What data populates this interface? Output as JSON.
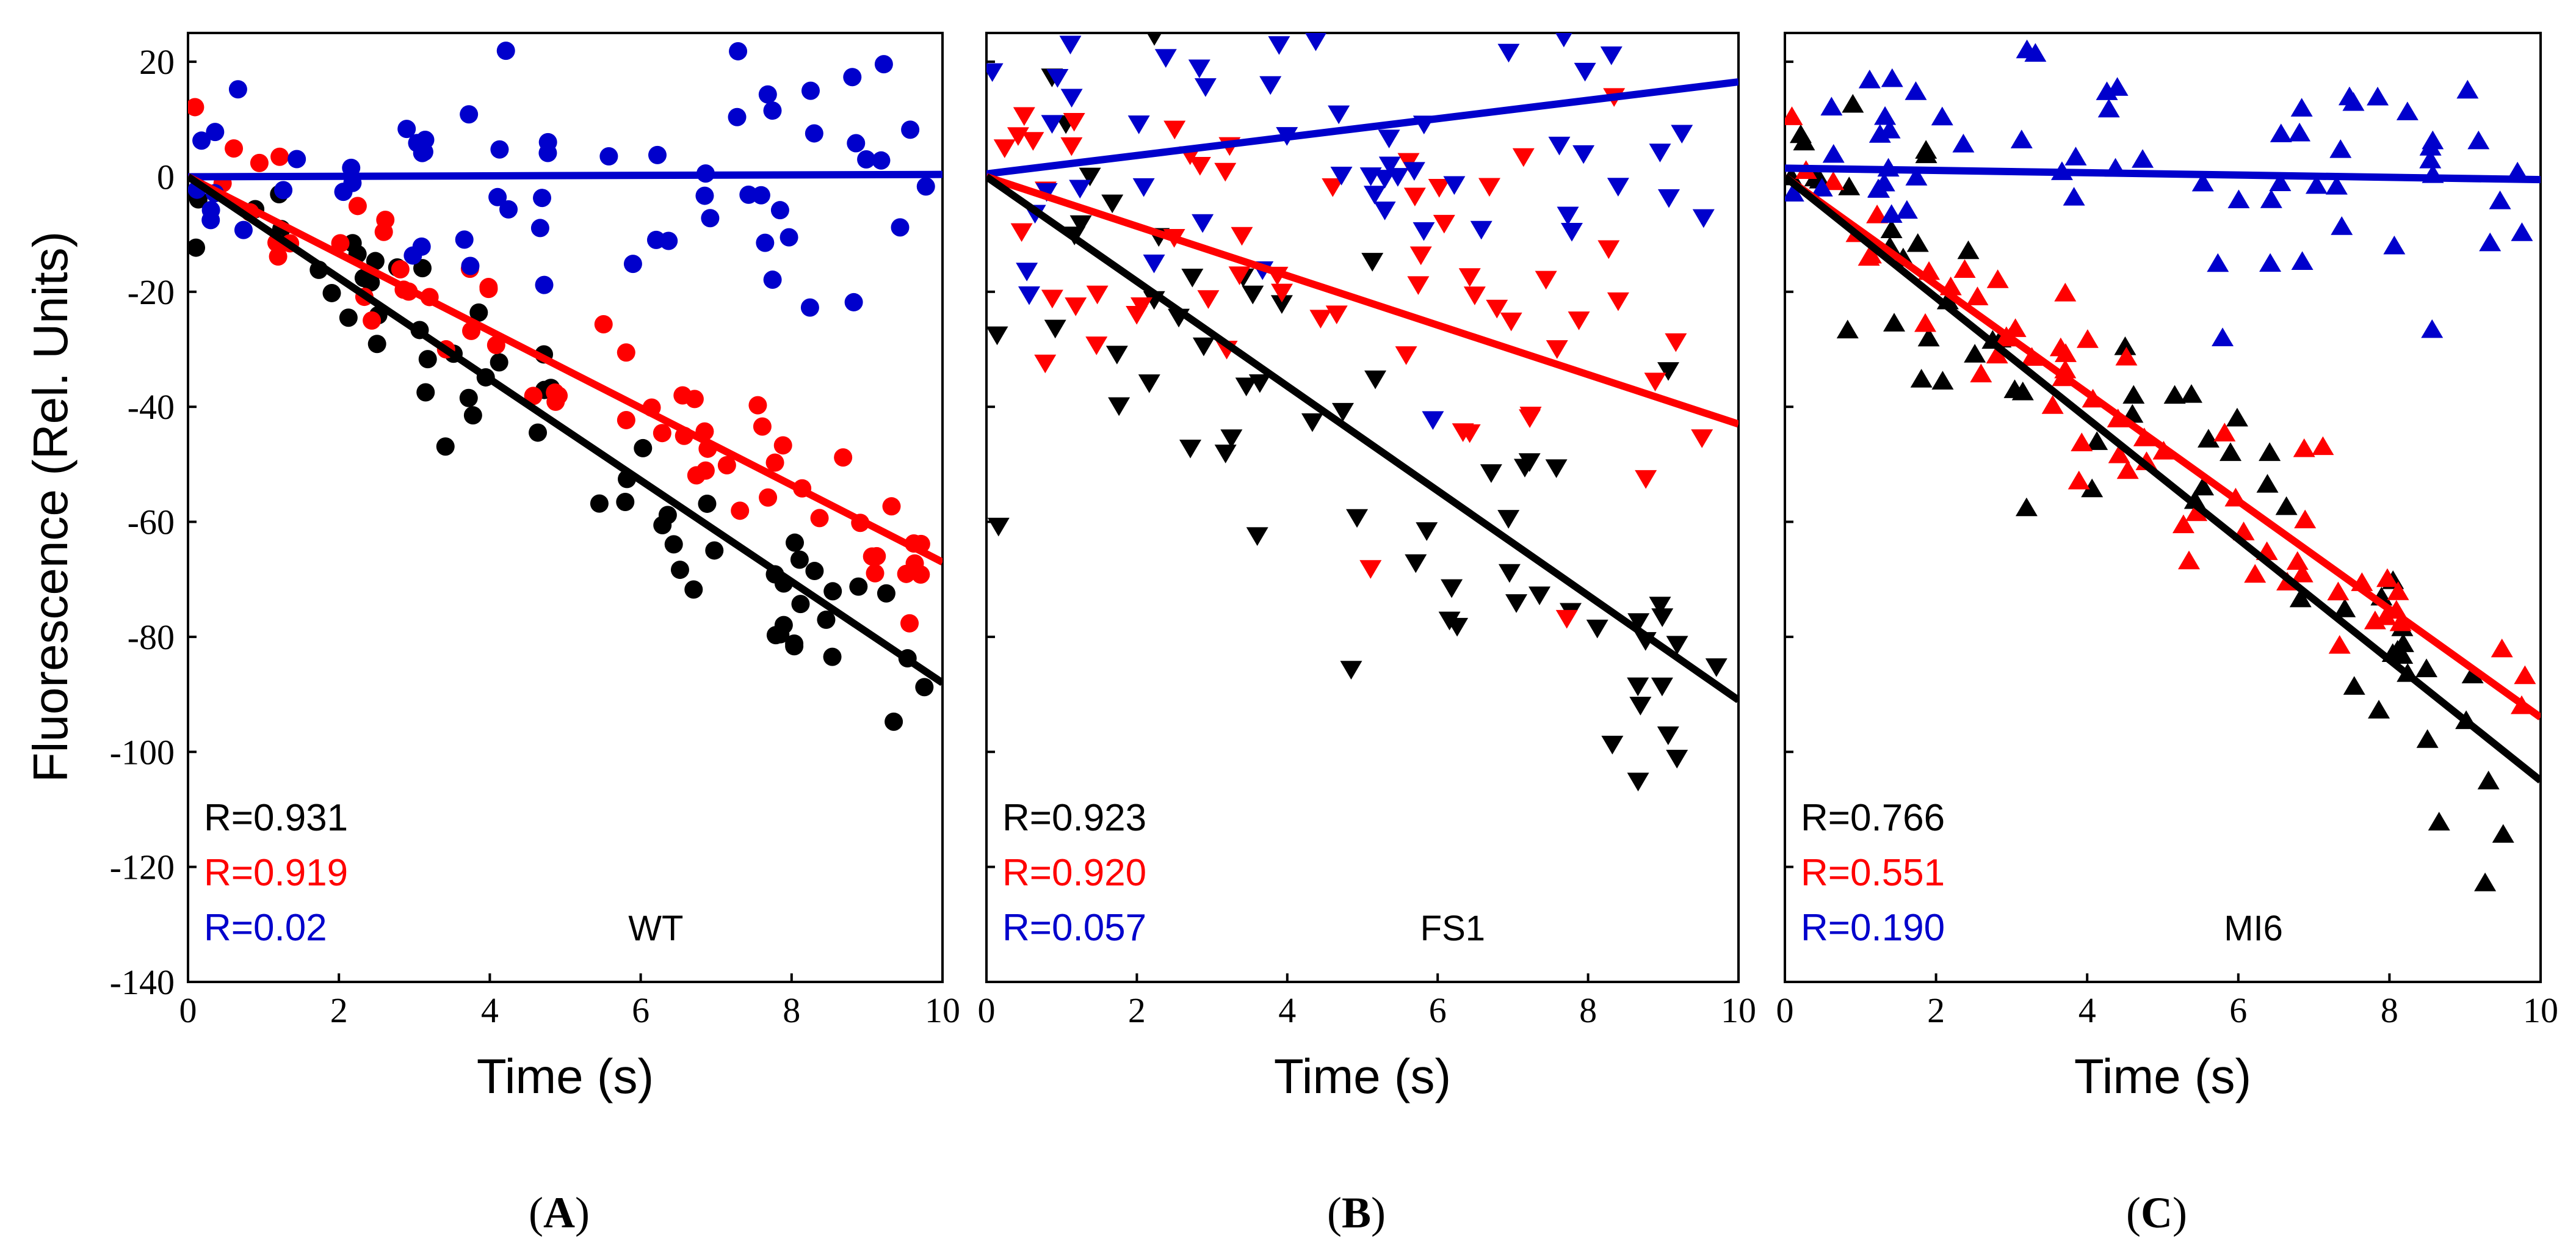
{
  "chart_data": {
    "type": "scatter",
    "ylabel": "Fluorescence (Rel. Units)",
    "ylim": [
      -140,
      25
    ],
    "yticks": [
      -140,
      -120,
      -100,
      -80,
      -60,
      -40,
      -20,
      0,
      20
    ],
    "xlim": [
      0,
      10
    ],
    "xticks": [
      0,
      2,
      4,
      6,
      8,
      10
    ],
    "colors": {
      "black": "#000000",
      "red": "#ff0000",
      "blue": "#0000cc"
    },
    "panels": [
      {
        "id": "A",
        "letter_open": "(",
        "letter": "A",
        "letter_close": ")",
        "name": "WT",
        "xlabel": "Time (s)",
        "marker": "circle",
        "series": [
          {
            "name": "black",
            "color": "#000000",
            "r_label": "R=0.931",
            "slope": -8.8,
            "intercept": 0
          },
          {
            "name": "red",
            "color": "#ff0000",
            "r_label": "R=0.919",
            "slope": -6.7,
            "intercept": 0
          },
          {
            "name": "blue",
            "color": "#0000cc",
            "r_label": "R=0.02",
            "slope": 0.04,
            "intercept": 0
          }
        ]
      },
      {
        "id": "B",
        "letter_open": "(",
        "letter": "B",
        "letter_close": ")",
        "name": "FS1",
        "xlabel": "Time (s)",
        "marker": "triangle-down",
        "series": [
          {
            "name": "black",
            "color": "#000000",
            "r_label": "R=0.923",
            "slope": -9.1,
            "intercept": 0
          },
          {
            "name": "red",
            "color": "#ff0000",
            "r_label": "R=0.920",
            "slope": -4.3,
            "intercept": 0
          },
          {
            "name": "blue",
            "color": "#0000cc",
            "r_label": "R=0.057",
            "slope": 1.6,
            "intercept": 0.5
          }
        ]
      },
      {
        "id": "C",
        "letter_open": "(",
        "letter": "C",
        "letter_close": ")",
        "name": "MI6",
        "xlabel": "Time (s)",
        "marker": "triangle-up",
        "series": [
          {
            "name": "black",
            "color": "#000000",
            "r_label": "R=0.766",
            "slope": -10.5,
            "intercept": 0
          },
          {
            "name": "red",
            "color": "#ff0000",
            "r_label": "R=0.551",
            "slope": -9.4,
            "intercept": 0
          },
          {
            "name": "blue",
            "color": "#0000cc",
            "r_label": "R=0.190",
            "slope": -0.2,
            "intercept": 1.5
          }
        ]
      }
    ]
  }
}
